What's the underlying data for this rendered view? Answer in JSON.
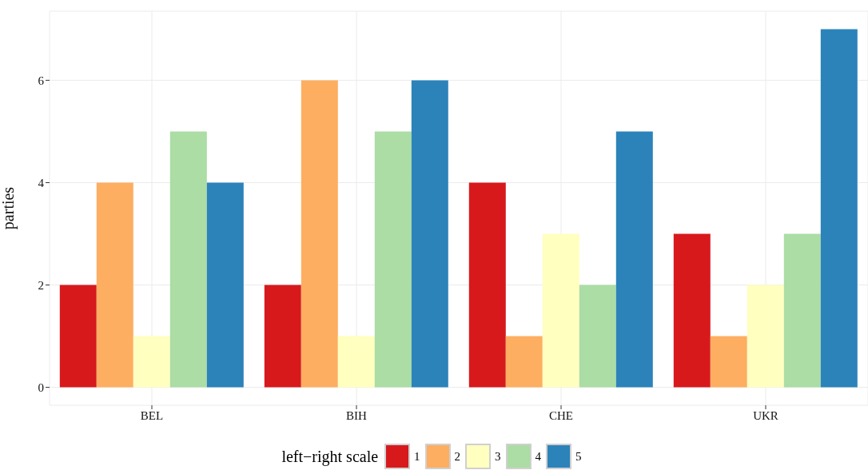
{
  "chart_data": {
    "type": "bar",
    "categories": [
      "BEL",
      "BIH",
      "CHE",
      "UKR"
    ],
    "series": [
      {
        "name": "1",
        "color": "#d7191c",
        "values": [
          2,
          2,
          4,
          3
        ]
      },
      {
        "name": "2",
        "color": "#fdae61",
        "values": [
          4,
          6,
          1,
          1
        ]
      },
      {
        "name": "3",
        "color": "#ffffbf",
        "values": [
          1,
          1,
          3,
          2
        ]
      },
      {
        "name": "4",
        "color": "#abdda4",
        "values": [
          5,
          5,
          2,
          3
        ]
      },
      {
        "name": "5",
        "color": "#2b83ba",
        "values": [
          4,
          6,
          5,
          7
        ]
      }
    ],
    "ylabel": "parties",
    "legend_title": "left−right scale",
    "legend": "bottom",
    "grid": true,
    "ylim": [
      -0.35,
      7.35
    ],
    "yticks": [
      0,
      2,
      4,
      6
    ]
  }
}
